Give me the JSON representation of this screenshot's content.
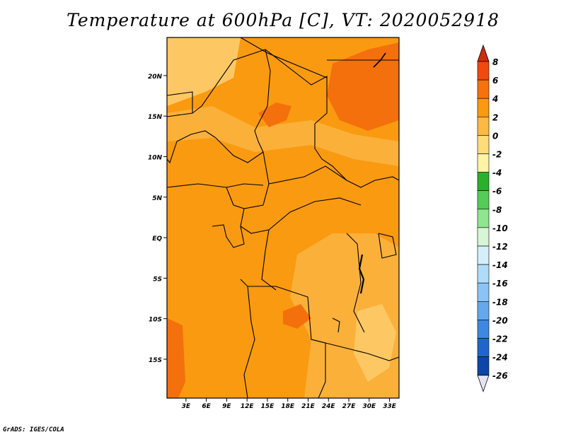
{
  "title": "Temperature at 600hPa [C], VT: 2020052918",
  "footer": "GrADS: IGES/COLA",
  "chart_data": {
    "type": "heatmap",
    "variable": "Temperature",
    "unit": "C",
    "level": "600hPa",
    "valid_time": "2020052918",
    "x_ticks": [
      "3E",
      "6E",
      "9E",
      "12E",
      "15E",
      "18E",
      "21E",
      "24E",
      "27E",
      "30E",
      "33E"
    ],
    "x_tick_values": [
      3,
      6,
      9,
      12,
      15,
      18,
      21,
      24,
      27,
      30,
      33
    ],
    "y_ticks": [
      "20N",
      "15N",
      "10N",
      "5N",
      "EQ",
      "5S",
      "10S",
      "15S"
    ],
    "y_tick_values": [
      20,
      15,
      10,
      5,
      0,
      -5,
      -10,
      -15
    ],
    "xlim": [
      0.2,
      34.4
    ],
    "ylim": [
      -19.8,
      24.7
    ],
    "colorbar": {
      "levels": [
        "8",
        "6",
        "4",
        "2",
        "0",
        "-2",
        "-4",
        "-6",
        "-8",
        "-10",
        "-12",
        "-14",
        "-16",
        "-18",
        "-20",
        "-22",
        "-24",
        "-26"
      ],
      "colors": [
        "#e02a0c",
        "#f04a0c",
        "#f6720c",
        "#fa9a10",
        "#fdb944",
        "#ffdc7a",
        "#fff3a6",
        "#2ab02a",
        "#55cc55",
        "#8ee68e",
        "#d6f6d6",
        "#d4eefc",
        "#b0dcfa",
        "#8ac4f6",
        "#64a8ee",
        "#3d88e0",
        "#1e66cc",
        "#0c46a8",
        "#08288a",
        "#e8e8f8"
      ],
      "top_color": "#d42a0c",
      "bottom_color": "#e4e4f6"
    },
    "field": {
      "base_color": "#fa9a10",
      "regions": [
        {
          "name": "south-east lighter",
          "class": "2 to 4",
          "color": "#fbb03a"
        },
        {
          "name": "sahel band",
          "class": "2 to 4",
          "color": "#fbb03a"
        },
        {
          "name": "north-west pale",
          "class": "0 to 2",
          "color": "#fdc864"
        },
        {
          "name": "north-east warm",
          "class": "4 to 6",
          "color": "#f4700c"
        },
        {
          "name": "chad warm patch",
          "class": "4 to 6",
          "color": "#f4700c"
        },
        {
          "name": "angola warm",
          "class": "4 to 6",
          "color": "#f4700c"
        },
        {
          "name": "south-west warm",
          "class": "4 to 6",
          "color": "#f4700c"
        },
        {
          "name": "mozambique pale",
          "class": "0 to 2",
          "color": "#fdc864"
        }
      ]
    }
  }
}
